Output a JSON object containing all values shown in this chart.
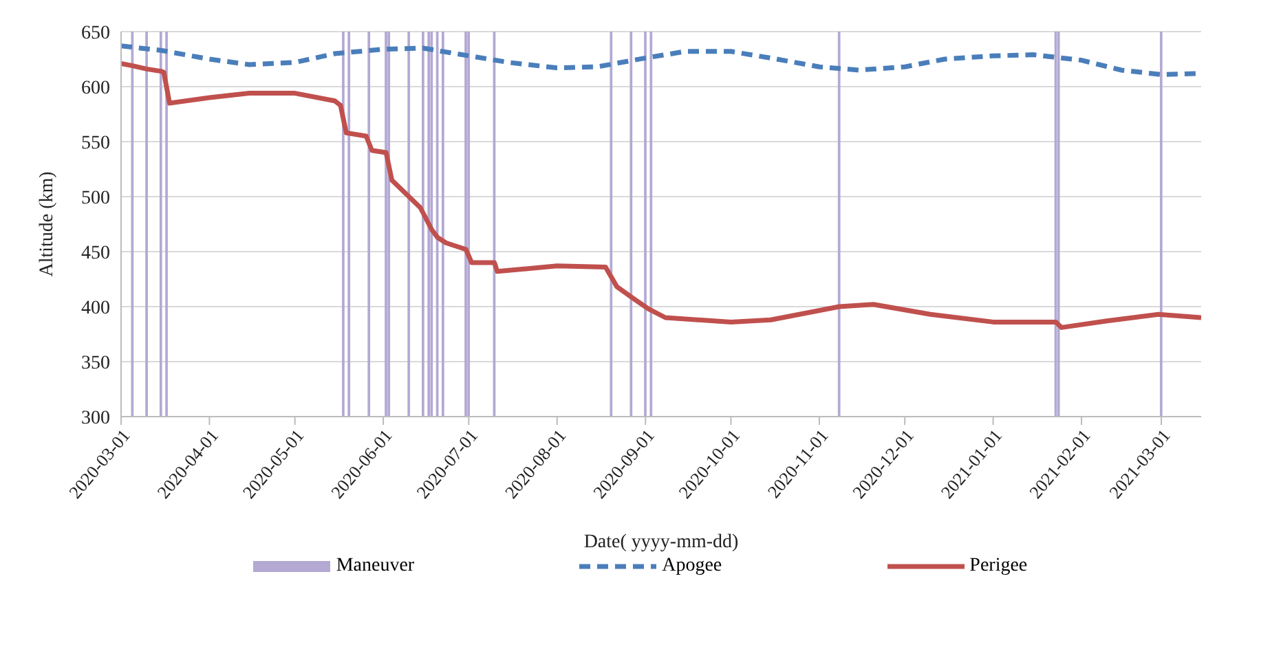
{
  "chart_data": {
    "type": "line",
    "xlabel": "Date( yyyy-mm-dd)",
    "ylabel": "Altitude (km)",
    "xlim": [
      "2020-03-01",
      "2021-03-15"
    ],
    "xticks": [
      "2020-03-01",
      "2020-04-01",
      "2020-05-01",
      "2020-06-01",
      "2020-07-01",
      "2020-08-01",
      "2020-09-01",
      "2020-10-01",
      "2020-11-01",
      "2020-12-01",
      "2021-01-01",
      "2021-02-01",
      "2021-03-01"
    ],
    "ylim": [
      300,
      650
    ],
    "yticks": [
      300,
      350,
      400,
      450,
      500,
      550,
      600,
      650
    ],
    "grid": "y",
    "legend": "bottom",
    "series": [
      {
        "name": "Maneuver",
        "type": "bar",
        "color": "#b3a9d3",
        "x": [
          "2020-03-05",
          "2020-03-10",
          "2020-03-15",
          "2020-03-17",
          "2020-05-18",
          "2020-05-20",
          "2020-05-27",
          "2020-06-02",
          "2020-06-03",
          "2020-06-10",
          "2020-06-15",
          "2020-06-17",
          "2020-06-18",
          "2020-06-20",
          "2020-06-22",
          "2020-06-30",
          "2020-07-01",
          "2020-07-10",
          "2020-08-20",
          "2020-08-27",
          "2020-09-01",
          "2020-09-03",
          "2020-11-08",
          "2021-01-23",
          "2021-01-24",
          "2021-03-01"
        ],
        "values": [
          650,
          650,
          650,
          650,
          650,
          650,
          650,
          650,
          650,
          650,
          650,
          650,
          650,
          650,
          650,
          650,
          650,
          650,
          650,
          650,
          650,
          650,
          650,
          650,
          650,
          650
        ]
      },
      {
        "name": "Apogee",
        "line_style": "dashed",
        "color": "#4a7ebb",
        "x": [
          "2020-03-01",
          "2020-03-15",
          "2020-04-01",
          "2020-04-15",
          "2020-05-01",
          "2020-05-15",
          "2020-06-01",
          "2020-06-15",
          "2020-07-01",
          "2020-07-15",
          "2020-08-01",
          "2020-08-15",
          "2020-09-01",
          "2020-09-15",
          "2020-10-01",
          "2020-10-15",
          "2020-11-01",
          "2020-11-15",
          "2020-12-01",
          "2020-12-15",
          "2021-01-01",
          "2021-01-15",
          "2021-02-01",
          "2021-02-15",
          "2021-03-01",
          "2021-03-15"
        ],
        "values": [
          637,
          633,
          625,
          620,
          622,
          630,
          634,
          635,
          628,
          622,
          617,
          618,
          626,
          632,
          632,
          626,
          618,
          615,
          618,
          625,
          628,
          629,
          624,
          615,
          611,
          612
        ]
      },
      {
        "name": "Perigee",
        "line_style": "solid",
        "color": "#c0504d",
        "x": [
          "2020-03-01",
          "2020-03-05",
          "2020-03-10",
          "2020-03-15",
          "2020-03-16",
          "2020-03-18",
          "2020-04-01",
          "2020-04-15",
          "2020-05-01",
          "2020-05-15",
          "2020-05-17",
          "2020-05-19",
          "2020-05-26",
          "2020-05-28",
          "2020-06-02",
          "2020-06-04",
          "2020-06-10",
          "2020-06-14",
          "2020-06-18",
          "2020-06-20",
          "2020-06-23",
          "2020-06-30",
          "2020-07-02",
          "2020-07-10",
          "2020-07-11",
          "2020-08-01",
          "2020-08-18",
          "2020-08-22",
          "2020-08-28",
          "2020-09-02",
          "2020-09-08",
          "2020-10-01",
          "2020-10-15",
          "2020-11-08",
          "2020-11-20",
          "2020-12-10",
          "2021-01-01",
          "2021-01-23",
          "2021-01-25",
          "2021-02-10",
          "2021-02-28",
          "2021-03-15"
        ],
        "values": [
          621,
          619,
          616,
          614,
          613,
          585,
          590,
          594,
          594,
          587,
          583,
          558,
          555,
          542,
          540,
          515,
          500,
          490,
          470,
          463,
          458,
          452,
          440,
          440,
          432,
          437,
          436,
          418,
          407,
          398,
          390,
          386,
          388,
          400,
          402,
          393,
          386,
          386,
          381,
          387,
          393,
          390
        ]
      }
    ]
  }
}
